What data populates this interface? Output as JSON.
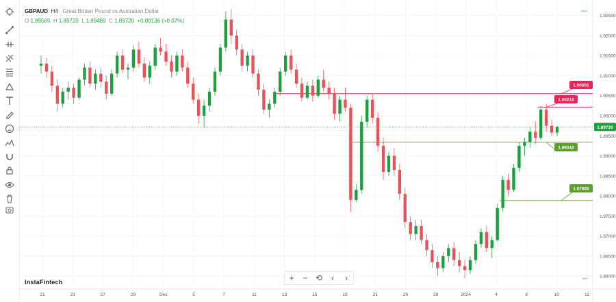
{
  "legend": {
    "symbol": "GBPAUD",
    "timeframe": "H4",
    "description": "Great Britain Pound vs Australian Dollar",
    "open_label": "O",
    "open": "1.89585",
    "high_label": "H",
    "high": "1.89720",
    "low_label": "L",
    "low": "1.89489",
    "close_label": "C",
    "close": "1.89720",
    "change": "+0.00136 (+0.07%)"
  },
  "brand": "InstaFintech",
  "price_axis": {
    "ticks": [
      "1.92500",
      "1.92000",
      "1.91500",
      "1.91000",
      "1.90500",
      "1.90000",
      "1.89500",
      "1.89000",
      "1.88500",
      "1.88000",
      "1.87500",
      "1.87000",
      "1.86500",
      "1.86000"
    ],
    "max_tag": "MAX",
    "min_tag": "MIN",
    "current_price": "1.89720"
  },
  "time_axis": {
    "labels": [
      "21",
      "23",
      "27",
      "29",
      "Dec",
      "5",
      "7",
      "11",
      "13",
      "15",
      "19",
      "21",
      "26",
      "28",
      "2024",
      "4",
      "8",
      "10",
      "12"
    ]
  },
  "levels": [
    {
      "label": "1.90551",
      "price": 1.90551,
      "color": "#e8245b"
    },
    {
      "label": "1.90216",
      "price": 1.90216,
      "color": "#e8245b"
    },
    {
      "label": "1.89342",
      "price": 1.89342,
      "color": "#5e9e2a"
    },
    {
      "label": "1.87885",
      "price": 1.87885,
      "color": "#5e9e2a"
    }
  ],
  "colors": {
    "bull": "#1e9e40",
    "bear": "#e8535a",
    "grid": "#eeeeee",
    "current_line": "#1e9e40"
  },
  "toolbar_icons": [
    "crosshair-icon",
    "trend-line-icon",
    "horizontal-line-icon",
    "fib-retracement-icon",
    "brush-icon",
    "pattern-icon",
    "text-icon",
    "pencil-icon",
    "emoji-icon",
    "measure-icon",
    "magnet-icon",
    "lock-icon",
    "visibility-icon",
    "trash-icon",
    "camera-icon"
  ],
  "controls": [
    "+",
    "−",
    "⟲",
    "‹",
    "›"
  ],
  "chart_data": {
    "type": "candlestick",
    "symbol": "GBPAUD",
    "timeframe": "H4",
    "ylim": [
      1.8585,
      1.9275
    ],
    "candles": [
      [
        1.9125,
        1.915,
        1.9105,
        1.913
      ],
      [
        1.913,
        1.9145,
        1.9095,
        1.911
      ],
      [
        1.911,
        1.9125,
        1.906,
        1.9075
      ],
      [
        1.9075,
        1.909,
        1.901,
        1.903
      ],
      [
        1.903,
        1.907,
        1.902,
        1.906
      ],
      [
        1.906,
        1.9085,
        1.904,
        1.907
      ],
      [
        1.907,
        1.908,
        1.903,
        1.9045
      ],
      [
        1.9045,
        1.9095,
        1.904,
        1.909
      ],
      [
        1.909,
        1.913,
        1.9075,
        1.912
      ],
      [
        1.912,
        1.9135,
        1.907,
        1.908
      ],
      [
        1.908,
        1.9115,
        1.9065,
        1.9105
      ],
      [
        1.9105,
        1.912,
        1.907,
        1.9085
      ],
      [
        1.9085,
        1.91,
        1.904,
        1.9055
      ],
      [
        1.9055,
        1.9115,
        1.905,
        1.9105
      ],
      [
        1.9105,
        1.916,
        1.9095,
        1.915
      ],
      [
        1.915,
        1.9165,
        1.9105,
        1.9115
      ],
      [
        1.9115,
        1.913,
        1.909,
        1.912
      ],
      [
        1.912,
        1.9175,
        1.911,
        1.9165
      ],
      [
        1.9165,
        1.9185,
        1.912,
        1.913
      ],
      [
        1.913,
        1.9145,
        1.9085,
        1.9095
      ],
      [
        1.9095,
        1.9135,
        1.908,
        1.9125
      ],
      [
        1.9125,
        1.918,
        1.9115,
        1.917
      ],
      [
        1.917,
        1.9195,
        1.915,
        1.916
      ],
      [
        1.916,
        1.918,
        1.9125,
        1.9135
      ],
      [
        1.9135,
        1.915,
        1.9095,
        1.911
      ],
      [
        1.911,
        1.916,
        1.91,
        1.915
      ],
      [
        1.915,
        1.9165,
        1.911,
        1.912
      ],
      [
        1.912,
        1.9135,
        1.907,
        1.908
      ],
      [
        1.908,
        1.9095,
        1.903,
        1.904
      ],
      [
        1.904,
        1.9055,
        1.898,
        1.9
      ],
      [
        1.9,
        1.904,
        1.897,
        1.9025
      ],
      [
        1.9025,
        1.907,
        1.901,
        1.906
      ],
      [
        1.906,
        1.912,
        1.905,
        1.911
      ],
      [
        1.911,
        1.918,
        1.91,
        1.917
      ],
      [
        1.917,
        1.926,
        1.916,
        1.924
      ],
      [
        1.924,
        1.9265,
        1.918,
        1.92
      ],
      [
        1.92,
        1.9215,
        1.915,
        1.9165
      ],
      [
        1.9165,
        1.918,
        1.911,
        1.9125
      ],
      [
        1.9125,
        1.916,
        1.911,
        1.915
      ],
      [
        1.915,
        1.9165,
        1.9095,
        1.9105
      ],
      [
        1.9105,
        1.9115,
        1.905,
        1.9065
      ],
      [
        1.9065,
        1.908,
        1.9005,
        1.9015
      ],
      [
        1.9015,
        1.904,
        1.8995,
        1.903
      ],
      [
        1.903,
        1.907,
        1.902,
        1.906
      ],
      [
        1.906,
        1.912,
        1.905,
        1.911
      ],
      [
        1.911,
        1.916,
        1.91,
        1.915
      ],
      [
        1.915,
        1.9165,
        1.9105,
        1.9115
      ],
      [
        1.9115,
        1.913,
        1.907,
        1.908
      ],
      [
        1.908,
        1.9095,
        1.9035,
        1.9045
      ],
      [
        1.9045,
        1.9085,
        1.904,
        1.9075
      ],
      [
        1.9075,
        1.909,
        1.9035,
        1.905
      ],
      [
        1.905,
        1.91,
        1.9045,
        1.909
      ],
      [
        1.909,
        1.9115,
        1.906,
        1.907
      ],
      [
        1.907,
        1.9085,
        1.904,
        1.9055
      ],
      [
        1.9055,
        1.907,
        1.899,
        1.9005
      ],
      [
        1.9005,
        1.905,
        1.8985,
        1.904
      ],
      [
        1.904,
        1.907,
        1.901,
        1.902
      ],
      [
        1.902,
        1.903,
        1.876,
        1.879
      ],
      [
        1.879,
        1.883,
        1.8785,
        1.8815
      ],
      [
        1.8815,
        1.9,
        1.8805,
        1.8985
      ],
      [
        1.8985,
        1.905,
        1.897,
        1.904
      ],
      [
        1.904,
        1.9055,
        1.898,
        1.8995
      ],
      [
        1.8995,
        1.901,
        1.891,
        1.8925
      ],
      [
        1.8925,
        1.8945,
        1.884,
        1.886
      ],
      [
        1.886,
        1.891,
        1.885,
        1.89
      ],
      [
        1.89,
        1.892,
        1.885,
        1.8865
      ],
      [
        1.8865,
        1.888,
        1.879,
        1.8805
      ],
      [
        1.8805,
        1.882,
        1.872,
        1.8735
      ],
      [
        1.8735,
        1.875,
        1.869,
        1.8705
      ],
      [
        1.8705,
        1.874,
        1.869,
        1.8725
      ],
      [
        1.8725,
        1.874,
        1.868,
        1.869
      ],
      [
        1.869,
        1.8705,
        1.865,
        1.8665
      ],
      [
        1.8665,
        1.868,
        1.862,
        1.8635
      ],
      [
        1.8635,
        1.865,
        1.86,
        1.862
      ],
      [
        1.862,
        1.866,
        1.861,
        1.865
      ],
      [
        1.865,
        1.868,
        1.8635,
        1.867
      ],
      [
        1.867,
        1.8685,
        1.8625,
        1.864
      ],
      [
        1.864,
        1.866,
        1.861,
        1.8625
      ],
      [
        1.8625,
        1.864,
        1.8595,
        1.8615
      ],
      [
        1.8615,
        1.865,
        1.8605,
        1.864
      ],
      [
        1.864,
        1.869,
        1.863,
        1.868
      ],
      [
        1.868,
        1.872,
        1.867,
        1.871
      ],
      [
        1.871,
        1.8725,
        1.866,
        1.867
      ],
      [
        1.867,
        1.87,
        1.8645,
        1.869
      ],
      [
        1.869,
        1.878,
        1.8685,
        1.877
      ],
      [
        1.877,
        1.885,
        1.876,
        1.884
      ],
      [
        1.884,
        1.8855,
        1.88,
        1.8815
      ],
      [
        1.8815,
        1.888,
        1.881,
        1.887
      ],
      [
        1.887,
        1.8935,
        1.886,
        1.8925
      ],
      [
        1.8925,
        1.8945,
        1.89,
        1.8935
      ],
      [
        1.8935,
        1.897,
        1.892,
        1.896
      ],
      [
        1.896,
        1.8985,
        1.893,
        1.8945
      ],
      [
        1.8945,
        1.9025,
        1.894,
        1.9015
      ],
      [
        1.9015,
        1.903,
        1.896,
        1.8975
      ],
      [
        1.8975,
        1.899,
        1.895,
        1.8958
      ],
      [
        1.8958,
        1.8975,
        1.8949,
        1.8972
      ]
    ]
  }
}
